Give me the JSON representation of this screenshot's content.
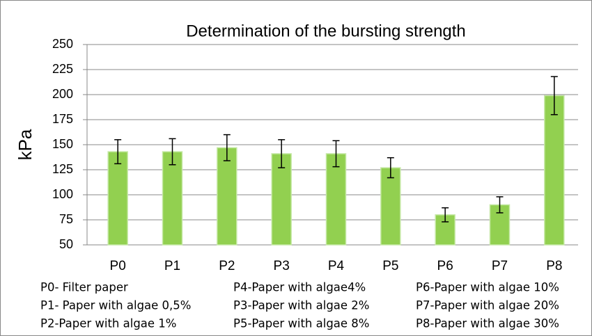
{
  "chart_data": {
    "type": "bar",
    "title": "Determination of the bursting strength",
    "y_label": "kPa",
    "categories": [
      "P0",
      "P1",
      "P2",
      "P3",
      "P4",
      "P5",
      "P6",
      "P7",
      "P8"
    ],
    "values": [
      143,
      143,
      147,
      141,
      141,
      127,
      80,
      90,
      199
    ],
    "errors": [
      12,
      13,
      13,
      14,
      13,
      10,
      7,
      8,
      19
    ],
    "color": "#92d050",
    "ylim": [
      50,
      250
    ],
    "yticks": [
      50,
      75,
      100,
      125,
      150,
      175,
      200,
      225,
      250
    ],
    "grid": true,
    "annotations": [
      "P0- Filter paper",
      "P4-Paper with algae4%",
      "P6-Paper with algae 10%",
      "P1- Paper with algae 0,5%",
      "P3-Paper with algae 2%",
      "P7-Paper with algae 20%",
      "P2-Paper with algae 1%",
      "P5-Paper with algae 8%",
      "P8-Paper with algae 30%"
    ]
  }
}
